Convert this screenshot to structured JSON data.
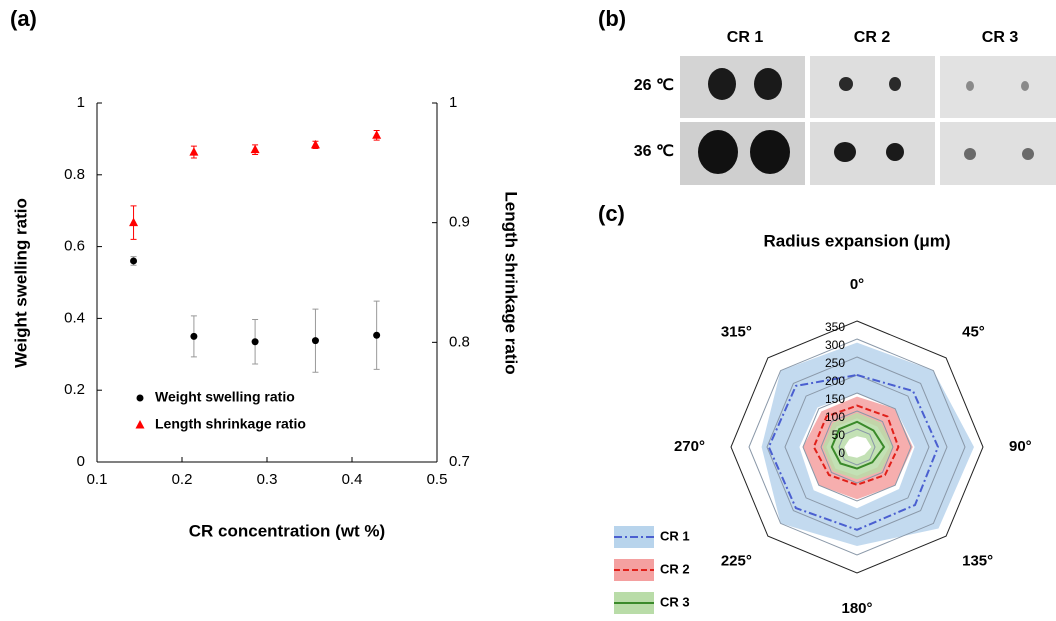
{
  "chart_data": [
    {
      "panel_label": "(a)",
      "type": "scatter",
      "x_label": "CR concentration (wt %)",
      "y_label": "Weight swelling ratio",
      "y2_label": "Length shrinkage ratio",
      "xlim": [
        0.1,
        0.5
      ],
      "xticks": [
        0.1,
        0.2,
        0.3,
        0.4,
        0.5
      ],
      "ylim": [
        0,
        1
      ],
      "yticks": [
        0,
        0.2,
        0.4,
        0.6,
        0.8,
        1
      ],
      "y2lim": [
        0.7,
        1
      ],
      "y2ticks": [
        0.7,
        0.8,
        0.9,
        1
      ],
      "x": [
        0.143,
        0.214,
        0.286,
        0.357,
        0.429
      ],
      "series": [
        {
          "name": "Weight swelling ratio",
          "color": "#000000",
          "marker": "circle",
          "values": [
            0.56,
            0.35,
            0.335,
            0.338,
            0.353
          ],
          "errors": [
            0.012,
            0.057,
            0.062,
            0.088,
            0.095
          ]
        },
        {
          "name": "Length shrinkage ratio",
          "color": "#ff0000",
          "marker": "triangle",
          "axis": "y2",
          "values": [
            0.9,
            0.959,
            0.961,
            0.965,
            0.973
          ],
          "errors": [
            0.014,
            0.005,
            0.004,
            0.003,
            0.004
          ]
        }
      ],
      "legend": "lower left"
    },
    {
      "panel_label": "(b)",
      "type": "image-grid",
      "columns": [
        "CR 1",
        "CR 2",
        "CR 3"
      ],
      "rows": [
        "26 ℃",
        "36 ℃"
      ]
    },
    {
      "panel_label": "(c)",
      "type": "radar",
      "title": "Radius expansion (μm)",
      "categories": [
        "0°",
        "45°",
        "90°",
        "135°",
        "180°",
        "225°",
        "270°",
        "315°"
      ],
      "rlim": [
        0,
        350
      ],
      "rticks": [
        0,
        50,
        100,
        150,
        200,
        250,
        300,
        350
      ],
      "series": [
        {
          "name": "CR 1",
          "color": "#4a5fd0",
          "band_color": "#b8d4ec",
          "line_style": "dash-dot",
          "values": [
            200,
            220,
            225,
            228,
            230,
            240,
            245,
            240
          ],
          "upper": [
            290,
            300,
            325,
            320,
            275,
            300,
            265,
            300
          ],
          "lower": [
            150,
            150,
            160,
            165,
            170,
            170,
            160,
            155
          ]
        },
        {
          "name": "CR 2",
          "color": "#e0201a",
          "band_color": "#f4a0a0",
          "line_style": "dashed",
          "values": [
            115,
            120,
            115,
            110,
            105,
            110,
            120,
            120
          ],
          "upper": [
            140,
            150,
            155,
            150,
            145,
            150,
            150,
            140
          ],
          "lower": [
            80,
            80,
            90,
            80,
            80,
            85,
            85,
            80
          ]
        },
        {
          "name": "CR 3",
          "color": "#3a8a2a",
          "band_color": "#b9dca8",
          "line_style": "solid",
          "values": [
            70,
            65,
            75,
            60,
            60,
            65,
            70,
            70
          ],
          "upper": [
            95,
            95,
            100,
            95,
            90,
            95,
            95,
            95
          ],
          "lower": [
            30,
            35,
            40,
            30,
            30,
            35,
            35,
            30
          ]
        }
      ],
      "legend": "lower left"
    }
  ]
}
